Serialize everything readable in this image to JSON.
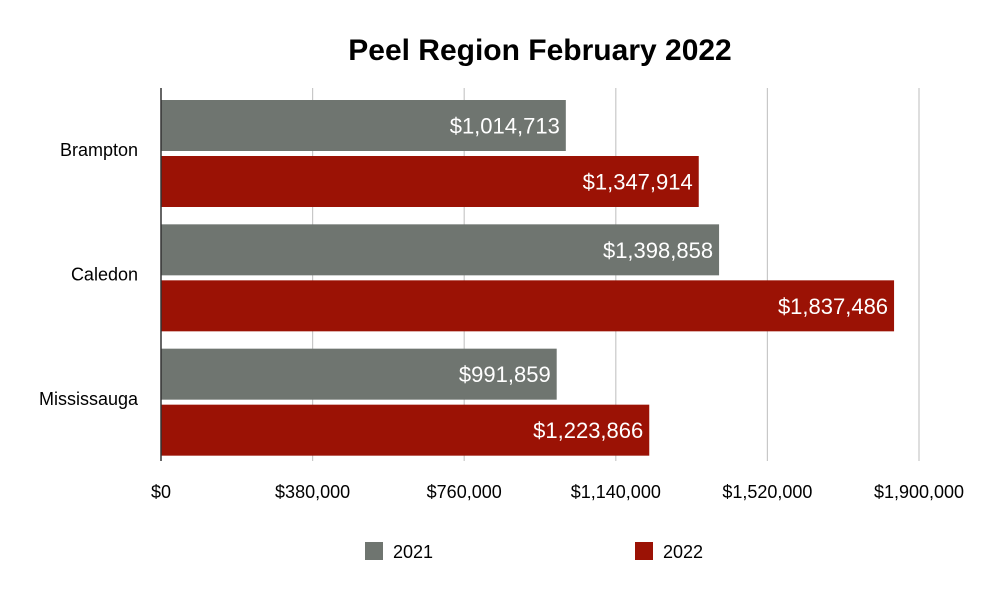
{
  "chart_data": {
    "type": "bar",
    "orientation": "horizontal",
    "title": "Peel Region February 2022",
    "xlabel": "",
    "ylabel": "",
    "categories": [
      "Brampton",
      "Caledon",
      "Mississauga"
    ],
    "series": [
      {
        "name": "2021",
        "color": "#6f7570",
        "values": [
          1014713,
          1398858,
          991859
        ],
        "labels": [
          "$1,014,713",
          "$1,398,858",
          "$991,859"
        ]
      },
      {
        "name": "2022",
        "color": "#9b1205",
        "values": [
          1347914,
          1837486,
          1223866
        ],
        "labels": [
          "$1,347,914",
          "$1,837,486",
          "$1,223,866"
        ]
      }
    ],
    "xlim": [
      0,
      1900000
    ],
    "x_ticks": [
      0,
      380000,
      760000,
      1140000,
      1520000,
      1900000
    ],
    "x_tick_labels": [
      "$0",
      "$380,000",
      "$760,000",
      "$1,140,000",
      "$1,520,000",
      "$1,900,000"
    ],
    "grid": true,
    "grid_color": "#c8c8c8",
    "legend_position": "bottom"
  }
}
